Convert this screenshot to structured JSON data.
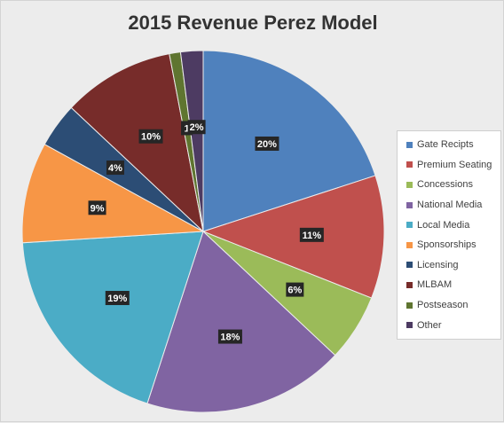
{
  "chart_data": {
    "type": "pie",
    "title": "2015 Revenue Perez Model",
    "slices": [
      {
        "name": "Gate Recipts",
        "value": 20,
        "label": "20%",
        "color": "#4f81bd"
      },
      {
        "name": "Premium Seating",
        "value": 11,
        "label": "11%",
        "color": "#c0504d"
      },
      {
        "name": "Concessions",
        "value": 6,
        "label": "6%",
        "color": "#9bbb59"
      },
      {
        "name": "National Media",
        "value": 18,
        "label": "18%",
        "color": "#8064a2"
      },
      {
        "name": "Local Media",
        "value": 19,
        "label": "19%",
        "color": "#4bacc6"
      },
      {
        "name": "Sponsorships",
        "value": 9,
        "label": "9%",
        "color": "#f79646"
      },
      {
        "name": "Licensing",
        "value": 4,
        "label": "4%",
        "color": "#2c4d75"
      },
      {
        "name": "MLBAM",
        "value": 10,
        "label": "10%",
        "color": "#772c2a"
      },
      {
        "name": "Postseason",
        "value": 1,
        "label": "1",
        "color": "#5f7530"
      },
      {
        "name": "Other",
        "value": 2,
        "label": "2%",
        "color": "#4d3b62"
      }
    ],
    "legend_position": "right",
    "start_angle": "top",
    "direction": "clockwise"
  }
}
